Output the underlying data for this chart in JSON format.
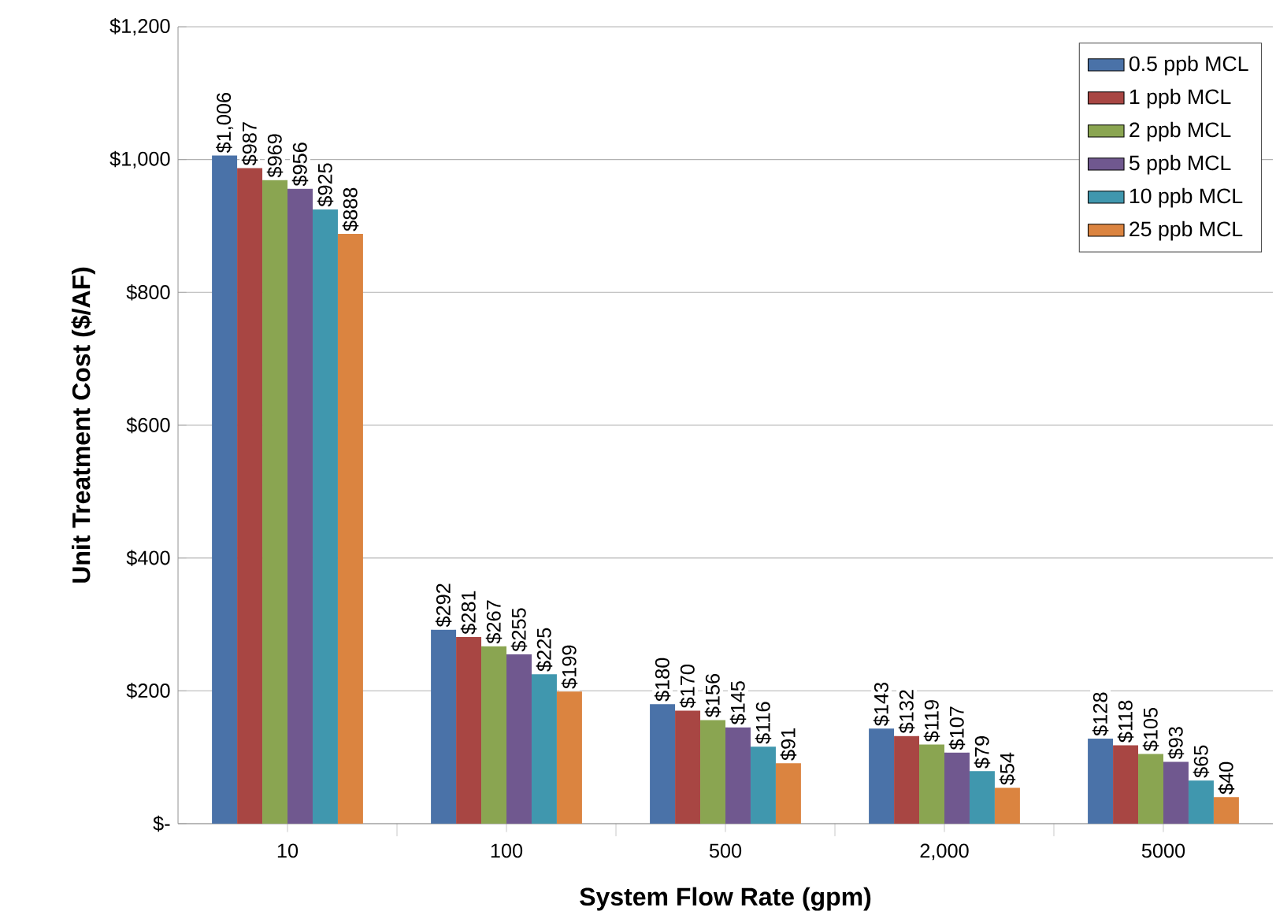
{
  "chart_data": {
    "type": "bar",
    "xlabel": "System Flow Rate (gpm)",
    "ylabel": "Unit Treatment Cost ($/AF)",
    "categories": [
      "10",
      "100",
      "500",
      "2,000",
      "5000"
    ],
    "series": [
      {
        "name": "0.5 ppb MCL",
        "color": "#4a72a8",
        "values": [
          1006,
          292,
          180,
          143,
          128
        ],
        "value_labels": [
          "$1,006",
          "$292",
          "$180",
          "$143",
          "$128"
        ]
      },
      {
        "name": "1 ppb MCL",
        "color": "#a84643",
        "values": [
          987,
          281,
          170,
          132,
          118
        ],
        "value_labels": [
          "$987",
          "$281",
          "$170",
          "$132",
          "$118"
        ]
      },
      {
        "name": "2 ppb MCL",
        "color": "#8aa551",
        "values": [
          969,
          267,
          156,
          119,
          105
        ],
        "value_labels": [
          "$969",
          "$267",
          "$156",
          "$119",
          "$105"
        ]
      },
      {
        "name": "5 ppb MCL",
        "color": "#70588f",
        "values": [
          956,
          255,
          145,
          107,
          93
        ],
        "value_labels": [
          "$956",
          "$255",
          "$145",
          "$107",
          "$93"
        ]
      },
      {
        "name": "10 ppb MCL",
        "color": "#4097ae",
        "values": [
          925,
          225,
          116,
          79,
          65
        ],
        "value_labels": [
          "$925",
          "$225",
          "$116",
          "$79",
          "$65"
        ]
      },
      {
        "name": "25 ppb MCL",
        "color": "#db8440",
        "values": [
          888,
          199,
          91,
          54,
          40
        ],
        "value_labels": [
          "$888",
          "$199",
          "$91",
          "$54",
          "$40"
        ]
      }
    ],
    "ylim": [
      0,
      1200
    ],
    "yticks": [
      {
        "value": 0,
        "label": "$-"
      },
      {
        "value": 200,
        "label": "$200"
      },
      {
        "value": 400,
        "label": "$400"
      },
      {
        "value": 600,
        "label": "$600"
      },
      {
        "value": 800,
        "label": "$800"
      },
      {
        "value": 1000,
        "label": "$1,000"
      },
      {
        "value": 1200,
        "label": "$1,200"
      }
    ],
    "grid": "y",
    "legend": "top right"
  }
}
